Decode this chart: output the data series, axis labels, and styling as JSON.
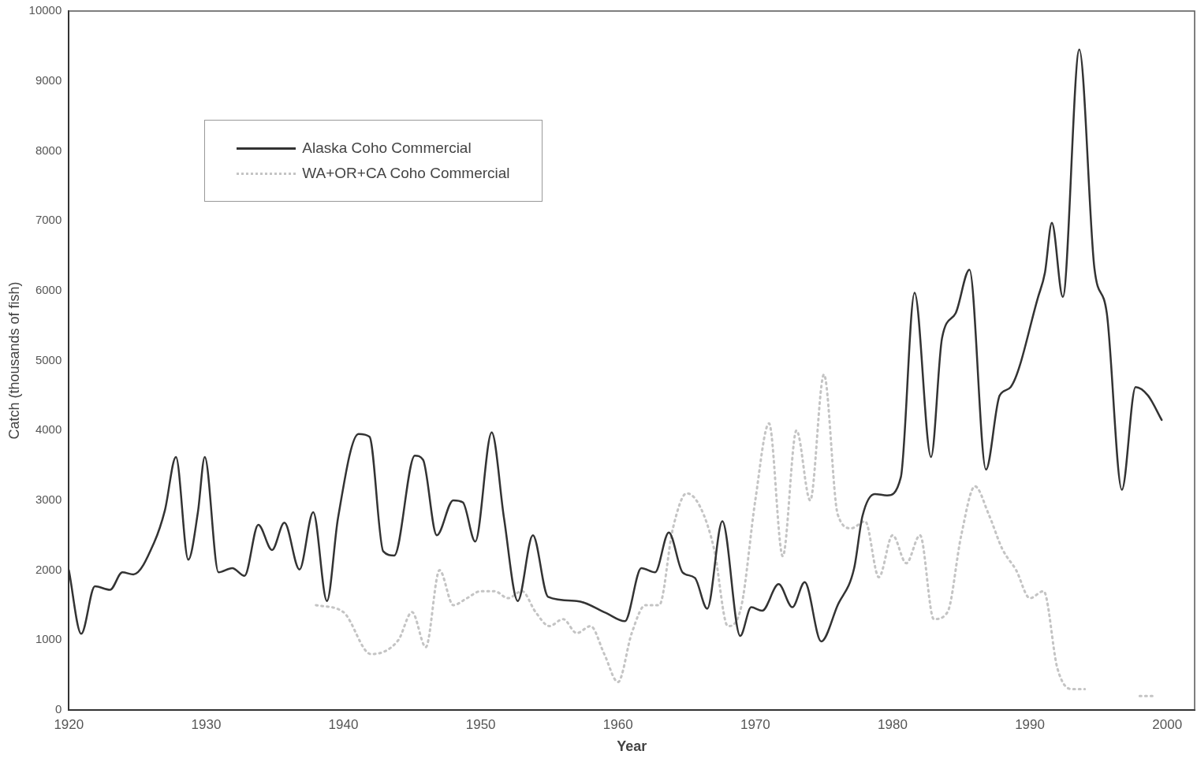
{
  "chart_data": {
    "type": "line",
    "xlabel": "Year",
    "ylabel": "Catch (thousands of fish)",
    "xlim": [
      1920,
      2002
    ],
    "xticks": [
      1920,
      1930,
      1940,
      1950,
      1960,
      1970,
      1980,
      1990,
      2000
    ],
    "ylim": [
      0,
      10000
    ],
    "yticks": [
      0,
      1000,
      2000,
      3000,
      4000,
      5000,
      6000,
      7000,
      8000,
      9000,
      10000
    ],
    "grid": false,
    "legend": "top left",
    "marker": "none",
    "series": [
      {
        "name": "Alaska Coho Commercial",
        "color": "#333333",
        "line_style": "solid",
        "x": [
          1920,
          1920.9,
          1921.9,
          1923,
          1923.9,
          1924.7,
          1926.2,
          1927,
          1927.8,
          1928.7,
          1929.4,
          1929.9,
          1930.9,
          1931.9,
          1932.8,
          1933.8,
          1934.8,
          1935.7,
          1936.8,
          1937.8,
          1938.8,
          1939.6,
          1941.1,
          1941.9,
          1942.9,
          1943.7,
          1945.2,
          1945.8,
          1946.8,
          1948,
          1948.7,
          1949.6,
          1950.8,
          1951.7,
          1952.7,
          1953.8,
          1954.9,
          1957,
          1959.1,
          1960.5,
          1961.7,
          1962.7,
          1963.7,
          1964.7,
          1965.6,
          1966.5,
          1967.6,
          1968.9,
          1969.7,
          1970.5,
          1971.7,
          1972.7,
          1973.6,
          1974.8,
          1976,
          1977.2,
          1977.8,
          1978.7,
          1979.6,
          1980.6,
          1981.6,
          1982.8,
          1983.6,
          1984.6,
          1985.6,
          1986.8,
          1987.8,
          1988.6,
          1990.6,
          1991.1,
          1991.6,
          1992.4,
          1993.6,
          1994.7,
          1995.6,
          1996.7,
          1997.7,
          1998.6,
          1999.6
        ],
        "values": [
          2000,
          1090,
          1770,
          1720,
          1970,
          1940,
          2390,
          2860,
          3620,
          2150,
          2830,
          3620,
          1970,
          2030,
          1920,
          2650,
          2290,
          2680,
          2010,
          2830,
          1560,
          2740,
          3950,
          3910,
          2270,
          2210,
          3640,
          3580,
          2500,
          3000,
          2970,
          2410,
          3970,
          2740,
          1560,
          2500,
          1620,
          1560,
          1390,
          1270,
          2030,
          1970,
          2540,
          1970,
          1890,
          1450,
          2700,
          1060,
          1470,
          1420,
          1800,
          1470,
          1830,
          980,
          1500,
          2030,
          2770,
          3090,
          3070,
          3330,
          5970,
          3620,
          5320,
          5680,
          6300,
          3440,
          4500,
          4620,
          5910,
          6260,
          6970,
          5910,
          9450,
          6320,
          5680,
          3150,
          4620,
          4500,
          4150
        ]
      },
      {
        "name": "WA+OR+CA Coho Commercial",
        "color": "#c4c4c4",
        "line_style": "dotted",
        "x": [
          1938,
          1940,
          1942,
          1944,
          1945,
          1946,
          1947,
          1948,
          1949,
          1950,
          1951,
          1952,
          1953,
          1954,
          1955,
          1956,
          1957,
          1958,
          1959,
          1960,
          1961,
          1962,
          1963,
          1964,
          1965,
          1966,
          1967,
          1968,
          1969,
          1970,
          1971,
          1972,
          1973,
          1974,
          1975,
          1976,
          1977,
          1978,
          1979,
          1980,
          1981,
          1982,
          1983,
          1984,
          1985,
          1986,
          1987,
          1988,
          1989,
          1990,
          1991,
          1992,
          1993,
          1994,
          1995,
          1996,
          1997,
          1998,
          1999
        ],
        "values": [
          1500,
          1400,
          800,
          1000,
          1400,
          900,
          2000,
          1500,
          1600,
          1700,
          1700,
          1600,
          1700,
          1400,
          1200,
          1300,
          1100,
          1200,
          800,
          400,
          1100,
          1500,
          1500,
          2600,
          3100,
          2900,
          2300,
          1200,
          1500,
          3000,
          4100,
          2200,
          4000,
          3000,
          4800,
          2800,
          2600,
          2700,
          1900,
          2500,
          2100,
          2500,
          1300,
          1400,
          2500,
          3200,
          2800,
          2300,
          2000,
          1600,
          1700,
          600,
          300,
          300,
          null,
          null,
          null,
          200,
          200
        ]
      }
    ]
  }
}
